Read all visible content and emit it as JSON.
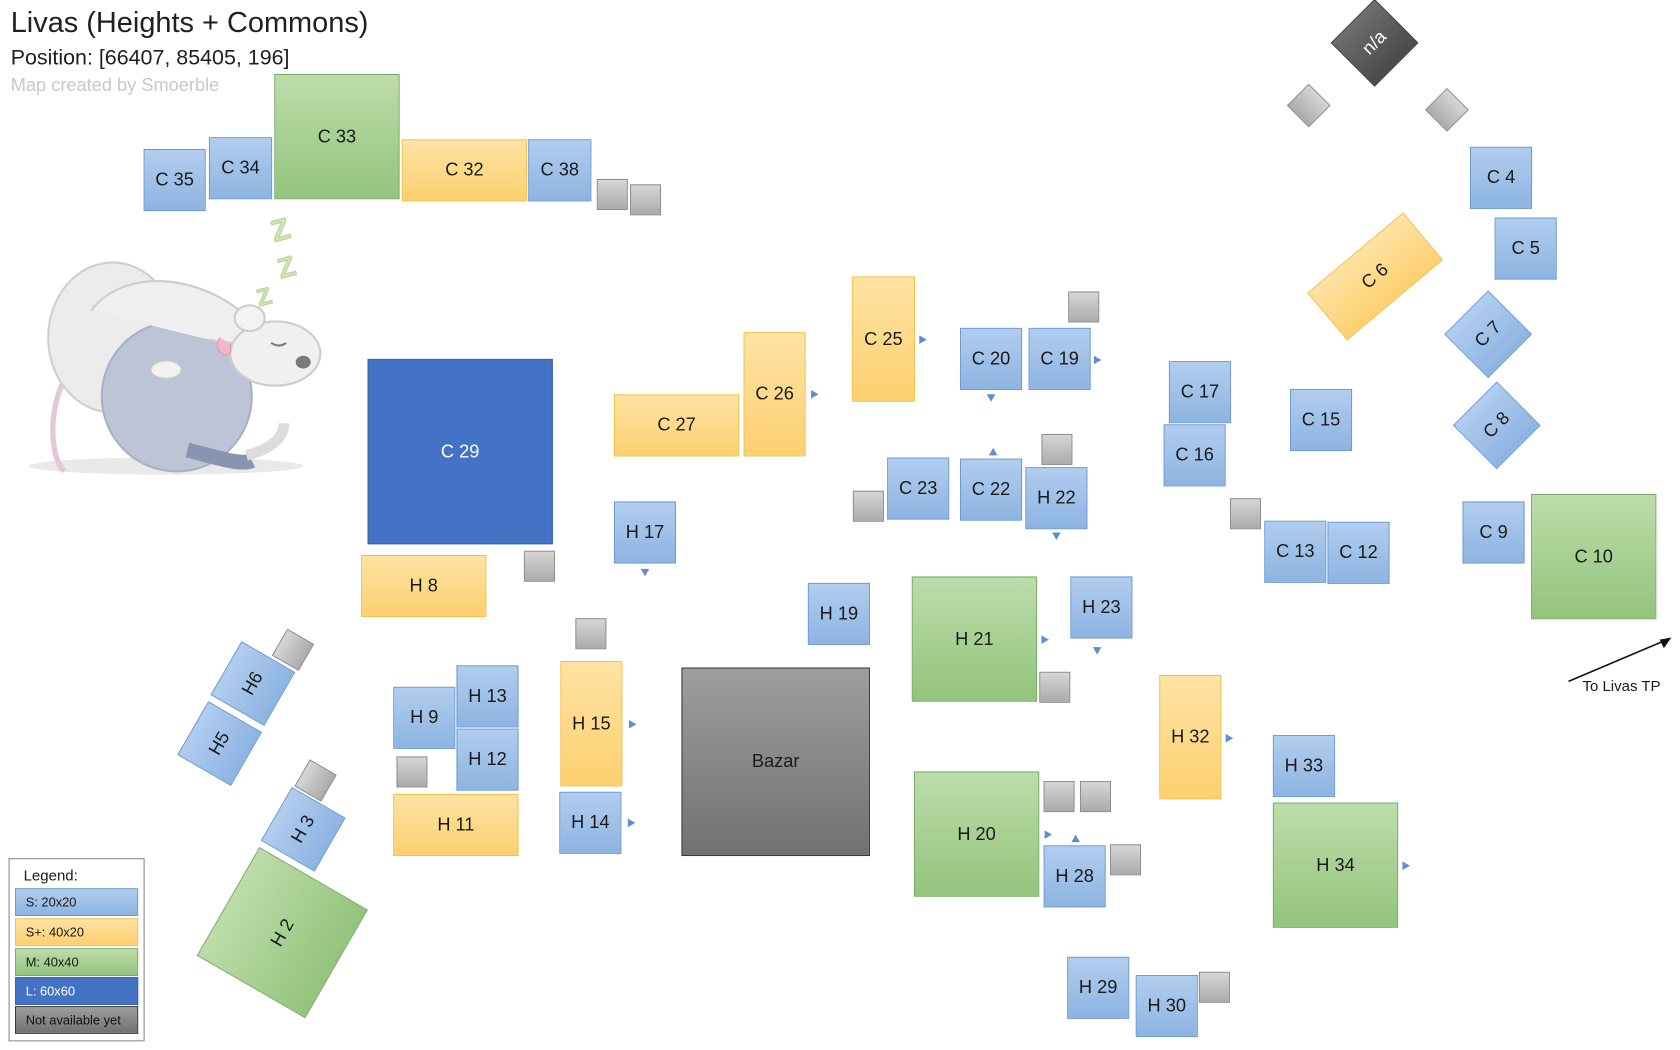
{
  "header": {
    "title": "Livas (Heights + Commons)",
    "position": "Position: [66407, 85405, 196]",
    "credit": "Map created by Smoerble"
  },
  "plots": {
    "c35": "C 35",
    "c34": "C 34",
    "c33": "C 33",
    "c32": "C 32",
    "c38": "C 38",
    "c29": "C 29",
    "h8": "H 8",
    "c27": "C 27",
    "c26": "C 26",
    "c25": "C 25",
    "c20": "C 20",
    "c19": "C 19",
    "c17": "C 17",
    "c16": "C 16",
    "c15": "C 15",
    "c23": "C 23",
    "c22": "C 22",
    "h22": "H 22",
    "h17": "H 17",
    "h19": "H 19",
    "c13": "C 13",
    "c12": "C 12",
    "c9": "C 9",
    "c10": "C 10",
    "c4": "C 4",
    "c5": "C 5",
    "c6": "C 6",
    "c7": "C 7",
    "c8": "C 8",
    "na": "n/a",
    "h21": "H 21",
    "h23": "H 23",
    "h6": "H6",
    "h5": "H5",
    "h3": "H 3",
    "h2": "H 2",
    "h9": "H 9",
    "h13": "H 13",
    "h12": "H 12",
    "h11": "H 11",
    "h15": "H 15",
    "h14": "H 14",
    "bazar": "Bazar",
    "h32": "H 32",
    "h33": "H 33",
    "h34": "H 34",
    "h20": "H 20",
    "h28": "H 28",
    "h29": "H 29",
    "h30": "H 30"
  },
  "legend": {
    "title": "Legend:",
    "items": [
      {
        "label": "S: 20x20",
        "color": "#8db4e2"
      },
      {
        "label": "S+: 40x20",
        "color": "#fdd070"
      },
      {
        "label": "M: 40x40",
        "color": "#93c47d"
      },
      {
        "label": "L: 60x60",
        "color": "#4472c4"
      },
      {
        "label": "Not available yet",
        "color": "#808080"
      }
    ]
  },
  "tp_label": "To Livas TP",
  "icons": {
    "mascot": "sleeping-rat-icon",
    "sleep": "zzz-icon",
    "arrow": "entrance-arrow-icon"
  }
}
